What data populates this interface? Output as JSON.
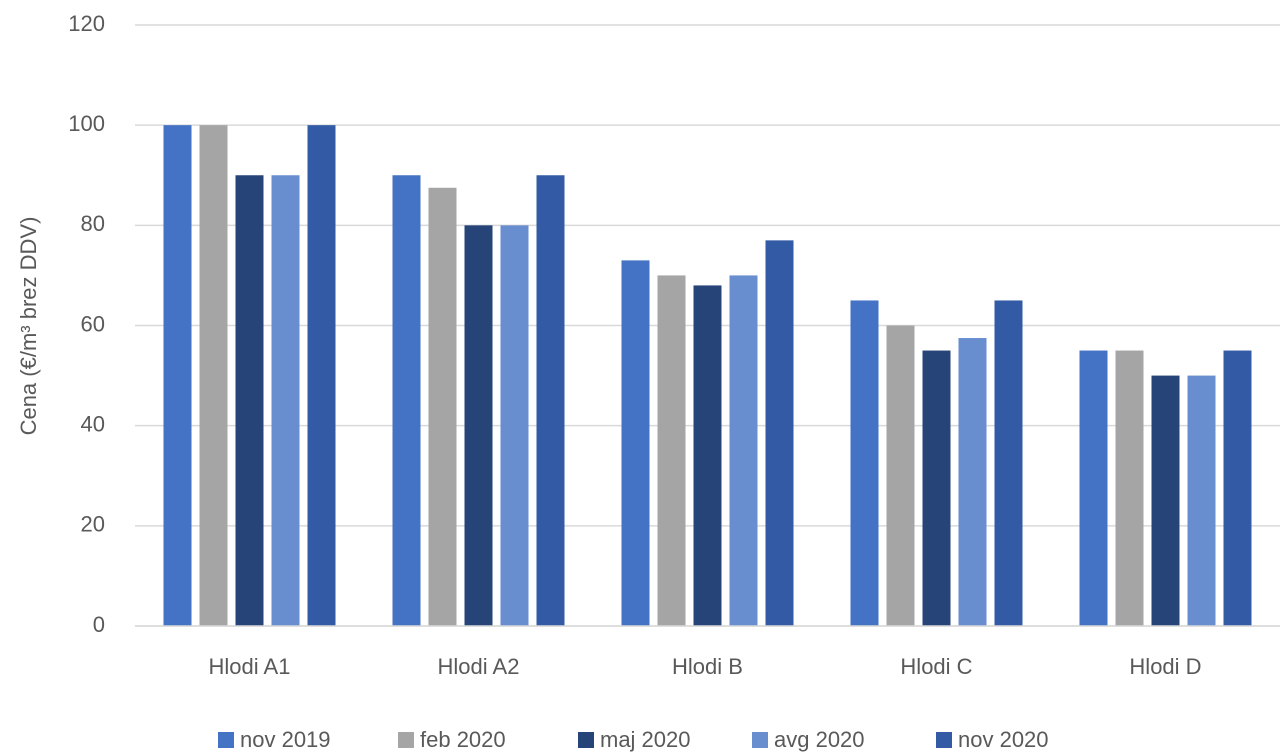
{
  "chart_data": {
    "type": "bar",
    "y_label": "Cena (€/m³ brez DDV)",
    "categories": [
      "Hlodi A1",
      "Hlodi A2",
      "Hlodi B",
      "Hlodi C",
      "Hlodi D"
    ],
    "series": [
      {
        "name": "nov 2019",
        "color": "#4472c4",
        "values": [
          100,
          90,
          73,
          65,
          55
        ]
      },
      {
        "name": "feb 2020",
        "color": "#a5a5a5",
        "values": [
          100,
          87.5,
          70,
          60,
          55
        ]
      },
      {
        "name": "maj 2020",
        "color": "#264478",
        "values": [
          90,
          80,
          68,
          55,
          50
        ]
      },
      {
        "name": "avg 2020",
        "color": "#698ed0",
        "values": [
          90,
          80,
          70,
          57.5,
          50
        ]
      },
      {
        "name": "nov 2020",
        "color": "#335aa5",
        "values": [
          100,
          90,
          77,
          65,
          55
        ]
      }
    ],
    "ylim": [
      0,
      120
    ],
    "yticks": [
      0,
      20,
      40,
      60,
      80,
      100,
      120
    ],
    "grid": true,
    "legend": "bottom"
  }
}
